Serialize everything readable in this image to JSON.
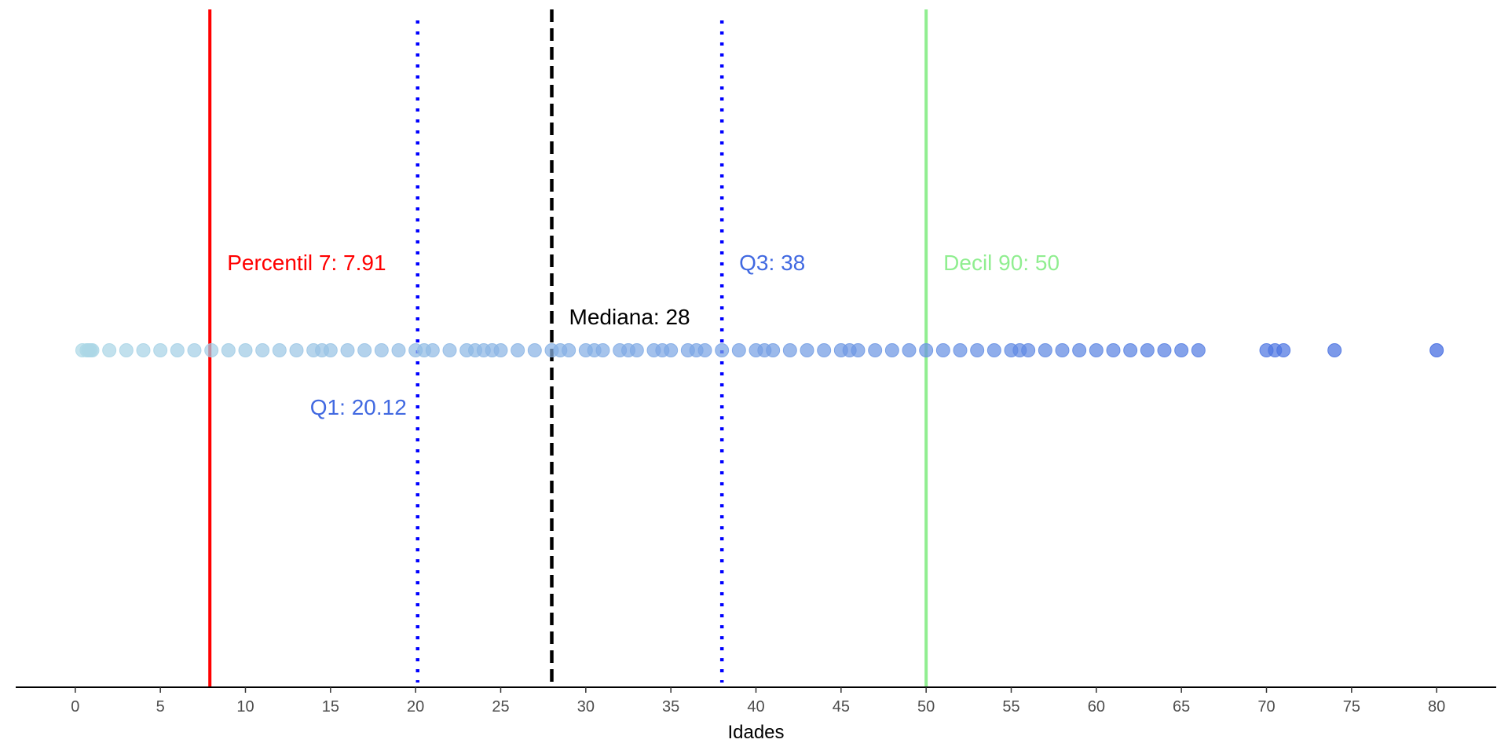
{
  "chart_data": {
    "type": "scatter",
    "title": "",
    "xlabel": "Idades",
    "ylabel": "",
    "xlim": [
      -3.5,
      83.5
    ],
    "xticks": [
      0,
      5,
      10,
      15,
      20,
      25,
      30,
      35,
      40,
      45,
      50,
      55,
      60,
      65,
      70,
      75,
      80
    ],
    "grid": false,
    "colors": {
      "low": "#add8e6",
      "high": "#4169e1",
      "median": "#000000",
      "quartile": "#0000ff",
      "percentile": "#ff0000",
      "decile": "#90ee90"
    },
    "points": [
      0.42,
      0.67,
      0.75,
      0.83,
      0.92,
      1,
      2,
      3,
      4,
      5,
      6,
      7,
      8,
      9,
      10,
      11,
      12,
      13,
      14,
      14.5,
      15,
      16,
      17,
      18,
      19,
      20,
      20.5,
      21,
      22,
      23,
      23.5,
      24,
      24.5,
      25,
      26,
      27,
      28,
      28.5,
      29,
      30,
      30.5,
      31,
      32,
      32.5,
      33,
      34,
      34.5,
      35,
      36,
      36.5,
      37,
      38,
      39,
      40,
      40.5,
      41,
      42,
      43,
      44,
      45,
      45.5,
      46,
      47,
      48,
      49,
      50,
      51,
      52,
      53,
      54,
      55,
      55.5,
      56,
      57,
      58,
      59,
      60,
      61,
      62,
      63,
      64,
      65,
      66,
      70,
      70.5,
      71,
      74,
      80
    ],
    "reference_lines": [
      {
        "label": "Percentil 7",
        "value": 7.91,
        "value_text": "7.91",
        "color": "#ff0000",
        "style": "solid",
        "label_side": "right",
        "label_level": "upper"
      },
      {
        "label": "Q1",
        "value": 20.12,
        "value_text": "20.12",
        "color": "#4169e1",
        "line_color": "#0000ff",
        "style": "dotted",
        "label_side": "left",
        "label_level": "lower"
      },
      {
        "label": "Mediana",
        "value": 28,
        "value_text": "28",
        "color": "#000000",
        "style": "dashed",
        "label_side": "right",
        "label_level": "middle"
      },
      {
        "label": "Q3",
        "value": 38,
        "value_text": "38",
        "color": "#4169e1",
        "line_color": "#0000ff",
        "style": "dotted",
        "label_side": "right",
        "label_level": "upper"
      },
      {
        "label": "Decil 90",
        "value": 50,
        "value_text": "50",
        "color": "#90ee90",
        "style": "solid",
        "label_side": "right",
        "label_level": "upper"
      }
    ]
  }
}
